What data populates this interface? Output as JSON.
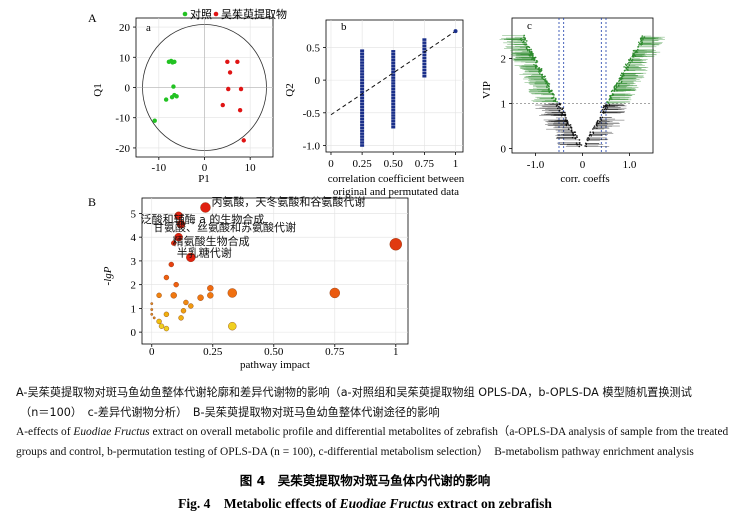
{
  "figure": {
    "panel_A_letter": "A",
    "panel_B_letter": "B",
    "title_cn": "图 4　吴茱萸提取物对斑马鱼体内代谢的影响",
    "title_en_prefix": "Fig. 4　Metabolic effects of ",
    "title_en_italic": "Euodiae Fructus",
    "title_en_suffix": " extract on zebrafish",
    "caption_cn_line1": "A-吴茱萸提取物对斑马鱼幼鱼整体代谢轮廓和差异代谢物的影响（a-对照组和吴茱萸提取物组 OPLS-DA，b-OPLS-DA 模型随机置换测试",
    "caption_cn_line2": "（n＝100）　c-差异代谢物分析）　B-吴茱萸提取物对斑马鱼幼鱼整体代谢途径的影响",
    "caption_en_line1_a": "A-effects of ",
    "caption_en_line1_italic": "Euodiae Fructus",
    "caption_en_line1_b": " extract on overall metabolic profile and differential metabolites of zebrafish（a-OPLS-DA analysis of sample from the treated",
    "caption_en_line2": "groups and control, b-permutation testing of OPLS-DA (n = 100), c-differential metabolism selection）　B-metabolism pathway enrichment analysis"
  },
  "colors": {
    "control": "#22c222",
    "treated": "#e01414",
    "permutation": "#1a2f8a",
    "vip_up": "#2e8b2e",
    "vip_down": "#111111",
    "threshold": "#1a3caa"
  },
  "chart_data": [
    {
      "id": "a",
      "type": "scatter",
      "panel_label": "a",
      "xlabel": "P1",
      "ylabel": "Q1",
      "xlim": [
        -15,
        15
      ],
      "ylim": [
        -23,
        23
      ],
      "x_ticks": [
        "-10",
        "0",
        "10"
      ],
      "y_ticks": [
        "20",
        "10",
        "0",
        "-10",
        "-20"
      ],
      "grid": true,
      "legend": [
        {
          "label": "对照",
          "color": "#22c222"
        },
        {
          "label": "吴茱萸提取物",
          "color": "#e01414"
        }
      ],
      "series": [
        {
          "name": "对照",
          "points": [
            [
              -7.8,
              8.5
            ],
            [
              -7.3,
              8.8
            ],
            [
              -7,
              8.3
            ],
            [
              -6.6,
              8.5
            ],
            [
              -6.8,
              0.3
            ],
            [
              -6.6,
              -2.5
            ],
            [
              -6.1,
              -2.9
            ],
            [
              -8.4,
              -4
            ],
            [
              -7.1,
              -3.2
            ],
            [
              -10.9,
              -11
            ]
          ]
        },
        {
          "name": "吴茱萸提取物",
          "points": [
            [
              5,
              8.5
            ],
            [
              7.2,
              8.5
            ],
            [
              5.6,
              5
            ],
            [
              5.2,
              -0.5
            ],
            [
              8,
              -0.5
            ],
            [
              4,
              -5.8
            ],
            [
              7.8,
              -7.5
            ],
            [
              8.6,
              -17.5
            ]
          ]
        }
      ]
    },
    {
      "id": "b",
      "type": "scatter",
      "panel_label": "b",
      "xlabel_line1": "correlation coefficient between",
      "xlabel_line2": "original and permutated data",
      "ylabel": "Q2",
      "xlim": [
        -0.04,
        1.06
      ],
      "ylim": [
        -1.1,
        0.92
      ],
      "x_ticks": [
        "0",
        "0.25",
        "0.50",
        "0.75",
        "1"
      ],
      "y_ticks": [
        "0.5",
        "0",
        "-0.5",
        "-1.0"
      ],
      "grid": true,
      "columns": [
        {
          "x": 0.25,
          "ymin": -1.0,
          "ymax": 0.45
        },
        {
          "x": 0.5,
          "ymin": -0.72,
          "ymax": 0.44
        },
        {
          "x": 0.75,
          "ymin": 0.06,
          "ymax": 0.62
        }
      ],
      "original_point": [
        1.0,
        0.75
      ],
      "trend_line": [
        [
          0.0,
          -0.53
        ],
        [
          1.0,
          0.75
        ]
      ]
    },
    {
      "id": "c",
      "type": "scatter",
      "panel_label": "c",
      "xlabel": "corr. coeffs",
      "ylabel": "VIP",
      "xlim": [
        -1.5,
        1.5
      ],
      "ylim": [
        -0.1,
        2.9
      ],
      "x_ticks": [
        "-1.0",
        "0",
        "1.0"
      ],
      "y_ticks": [
        "2",
        "1",
        "0"
      ],
      "vip_threshold": 1,
      "corr_thresholds": [
        -0.5,
        -0.4,
        0.4,
        0.5
      ]
    },
    {
      "id": "B",
      "type": "scatter",
      "xlabel": "pathway impact",
      "ylabel": "-lgP",
      "xlim": [
        -0.04,
        1.05
      ],
      "ylim": [
        -0.5,
        5.65
      ],
      "x_ticks": [
        "0",
        "0.25",
        "0.50",
        "0.75",
        "1"
      ],
      "y_ticks": [
        "5",
        "4",
        "3",
        "2",
        "1",
        "0"
      ],
      "grid": true,
      "points": [
        {
          "x": 0.22,
          "y": 5.25,
          "r": 5,
          "color": "#e02010",
          "label": "丙氨酸，天冬氨酸和谷氨酸代谢"
        },
        {
          "x": 0.11,
          "y": 4.9,
          "r": 4,
          "color": "#e02010",
          "label": "泛酸和辅酶 a 的生物合成"
        },
        {
          "x": 0.12,
          "y": 4.55,
          "r": 4,
          "color": "#e02010",
          "label": "甘氨酸、丝氨酸和苏氨酸代谢"
        },
        {
          "x": 0.11,
          "y": 4.0,
          "r": 4,
          "color": "#e02010",
          "label": "精氨酸生物合成"
        },
        {
          "x": 0.16,
          "y": 3.15,
          "r": 4.5,
          "color": "#e02010",
          "label": "半乳糖代谢"
        },
        {
          "x": 1.0,
          "y": 3.7,
          "r": 6,
          "color": "#e03a10"
        },
        {
          "x": 0.75,
          "y": 1.65,
          "r": 5,
          "color": "#ea5a10"
        },
        {
          "x": 0.33,
          "y": 1.65,
          "r": 4.5,
          "color": "#f07010"
        },
        {
          "x": 0.33,
          "y": 0.25,
          "r": 4,
          "color": "#f0d020"
        },
        {
          "x": 0.09,
          "y": 3.75,
          "r": 2.5,
          "color": "#e82a10"
        },
        {
          "x": 0.08,
          "y": 2.85,
          "r": 2.5,
          "color": "#e84010"
        },
        {
          "x": 0.06,
          "y": 2.3,
          "r": 2.5,
          "color": "#f06010"
        },
        {
          "x": 0.1,
          "y": 2.0,
          "r": 2.5,
          "color": "#f06010"
        },
        {
          "x": 0.24,
          "y": 1.85,
          "r": 3,
          "color": "#f06a10"
        },
        {
          "x": 0.24,
          "y": 1.55,
          "r": 3,
          "color": "#f07810"
        },
        {
          "x": 0.2,
          "y": 1.45,
          "r": 3,
          "color": "#f07810"
        },
        {
          "x": 0.09,
          "y": 1.55,
          "r": 3,
          "color": "#f07810"
        },
        {
          "x": 0.03,
          "y": 1.55,
          "r": 2.5,
          "color": "#f08410"
        },
        {
          "x": 0.14,
          "y": 1.25,
          "r": 2.5,
          "color": "#f08a10"
        },
        {
          "x": 0.16,
          "y": 1.1,
          "r": 2.5,
          "color": "#f09a10"
        },
        {
          "x": 0.13,
          "y": 0.9,
          "r": 2.5,
          "color": "#f0a010"
        },
        {
          "x": 0.12,
          "y": 0.6,
          "r": 2.5,
          "color": "#f0b010"
        },
        {
          "x": 0.06,
          "y": 0.75,
          "r": 2.5,
          "color": "#f0b010"
        },
        {
          "x": 0.03,
          "y": 0.45,
          "r": 2.5,
          "color": "#f0c010"
        },
        {
          "x": 0.04,
          "y": 0.25,
          "r": 2.5,
          "color": "#f0d020"
        },
        {
          "x": 0.06,
          "y": 0.15,
          "r": 2.5,
          "color": "#f0d020"
        },
        {
          "x": 0.01,
          "y": 0.6,
          "r": 1.2,
          "color": "#e08a20"
        },
        {
          "x": 0.0,
          "y": 1.2,
          "r": 1.2,
          "color": "#e08a20"
        },
        {
          "x": 0.0,
          "y": 0.95,
          "r": 1.2,
          "color": "#e08a20"
        },
        {
          "x": 0.0,
          "y": 0.75,
          "r": 1.2,
          "color": "#e08a20"
        }
      ]
    }
  ]
}
